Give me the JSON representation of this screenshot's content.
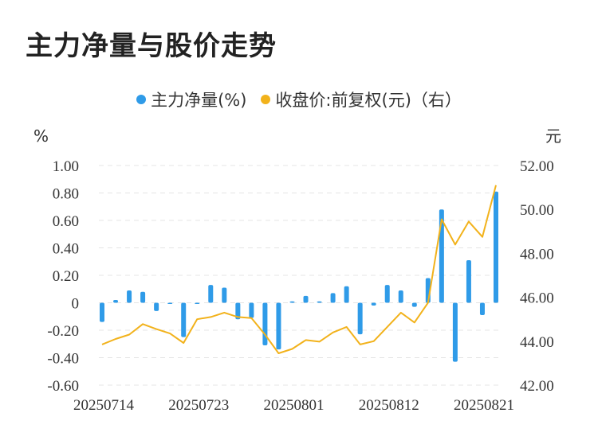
{
  "title": "主力净量与股价走势",
  "legend": [
    {
      "label": "主力净量(%)",
      "color": "#2f9be8"
    },
    {
      "label": "收盘价:前复权(元)（右）",
      "color": "#f2b21b"
    }
  ],
  "chart_data": {
    "type": "bar",
    "title": "主力净量与股价走势",
    "left_unit": "%",
    "right_unit": "元",
    "left_ylim": [
      -0.6,
      1.0
    ],
    "right_ylim": [
      42.0,
      52.0
    ],
    "left_ticks": [
      "1.00",
      "0.80",
      "0.60",
      "0.40",
      "0.20",
      "0",
      "-0.20",
      "-0.40",
      "-0.60"
    ],
    "right_ticks": [
      "52.00",
      "50.00",
      "48.00",
      "46.00",
      "44.00",
      "42.00"
    ],
    "x_tick_labels": [
      "20250714",
      "20250723",
      "20250801",
      "20250812",
      "20250821"
    ],
    "x_tick_indices": [
      0,
      7,
      14,
      21,
      28
    ],
    "grid": true,
    "legend_position": "top",
    "series": [
      {
        "name": "主力净量(%)",
        "type": "bar",
        "axis": "left",
        "color": "#2f9be8",
        "values": [
          -0.14,
          0.02,
          0.09,
          0.08,
          -0.06,
          0.0,
          -0.25,
          0.0,
          0.13,
          0.11,
          -0.12,
          -0.11,
          -0.31,
          -0.34,
          0.01,
          0.05,
          0.01,
          0.07,
          0.12,
          -0.23,
          -0.02,
          0.13,
          0.09,
          -0.03,
          0.18,
          0.68,
          -0.43,
          0.31,
          -0.09,
          0.81
        ]
      },
      {
        "name": "收盘价:前复权(元)（右）",
        "type": "line",
        "axis": "right",
        "color": "#f2b21b",
        "values": [
          43.85,
          44.1,
          44.3,
          44.78,
          44.55,
          44.35,
          43.92,
          45.0,
          45.1,
          45.3,
          45.1,
          45.05,
          44.3,
          43.45,
          43.65,
          44.05,
          43.98,
          44.4,
          44.65,
          43.85,
          44.0,
          44.65,
          45.3,
          44.85,
          45.75,
          49.55,
          48.4,
          49.45,
          48.75,
          51.1
        ]
      }
    ]
  }
}
